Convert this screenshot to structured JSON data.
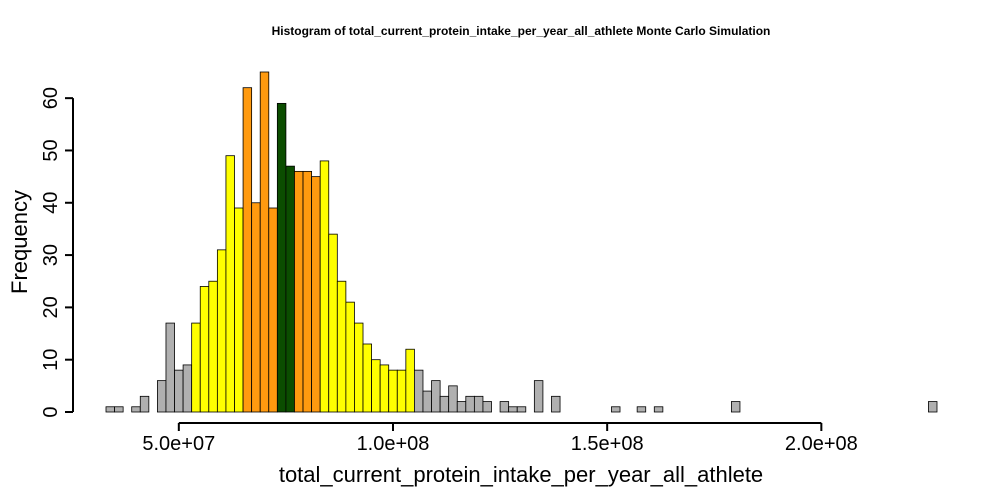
{
  "chart_data": {
    "type": "bar",
    "title": "Histogram of  total_current_protein_intake_per_year_all_athlete  Monte Carlo Simulation",
    "xlabel": "total_current_protein_intake_per_year_all_athlete",
    "ylabel": "Frequency",
    "bin_start": 33000000,
    "bin_width": 2000000,
    "xlim": [
      33000000,
      227000000
    ],
    "ylim": [
      0,
      65
    ],
    "x_ticks": [
      50000000,
      100000000,
      150000000,
      200000000
    ],
    "x_tick_labels": [
      "5.0e+07",
      "1.0e+08",
      "1.5e+08",
      "2.0e+08"
    ],
    "y_ticks": [
      0,
      10,
      20,
      30,
      40,
      50,
      60
    ],
    "y_tick_labels": [
      "0",
      "10",
      "20",
      "30",
      "40",
      "50",
      "60"
    ],
    "grid": false,
    "legend": "none",
    "colors": {
      "outer": "#b0b0b0",
      "inner": "#ffff00",
      "core": "#ff9a0f",
      "center": "#0b4d00",
      "edge": "#000000"
    },
    "counts": [
      1,
      1,
      0,
      1,
      3,
      0,
      6,
      17,
      8,
      9,
      17,
      24,
      25,
      31,
      49,
      39,
      62,
      40,
      65,
      39,
      59,
      47,
      46,
      46,
      45,
      48,
      34,
      25,
      21,
      17,
      13,
      10,
      9,
      8,
      8,
      12,
      8,
      4,
      6,
      3,
      5,
      2,
      3,
      3,
      2,
      0,
      2,
      1,
      1,
      0,
      6,
      0,
      3,
      0,
      0,
      0,
      0,
      0,
      0,
      1,
      0,
      0,
      1,
      0,
      1,
      0,
      0,
      0,
      0,
      0,
      0,
      0,
      0,
      2,
      0,
      0,
      0,
      0,
      0,
      0,
      0,
      0,
      0,
      0,
      0,
      0,
      0,
      0,
      0,
      0,
      0,
      0,
      0,
      0,
      0,
      0,
      2
    ],
    "bin_colors": [
      "outer",
      "outer",
      "outer",
      "outer",
      "outer",
      "outer",
      "outer",
      "outer",
      "outer",
      "outer",
      "inner",
      "inner",
      "inner",
      "inner",
      "inner",
      "inner",
      "core",
      "core",
      "core",
      "core",
      "center",
      "center",
      "core",
      "core",
      "core",
      "inner",
      "inner",
      "inner",
      "inner",
      "inner",
      "inner",
      "inner",
      "inner",
      "inner",
      "inner",
      "inner",
      "outer",
      "outer",
      "outer",
      "outer",
      "outer",
      "outer",
      "outer",
      "outer",
      "outer",
      "outer",
      "outer",
      "outer",
      "outer",
      "outer",
      "outer",
      "outer",
      "outer",
      "outer",
      "outer",
      "outer",
      "outer",
      "outer",
      "outer",
      "outer",
      "outer",
      "outer",
      "outer",
      "outer",
      "outer",
      "outer",
      "outer",
      "outer",
      "outer",
      "outer",
      "outer",
      "outer",
      "outer",
      "outer",
      "outer",
      "outer",
      "outer",
      "outer",
      "outer",
      "outer",
      "outer",
      "outer",
      "outer",
      "outer",
      "outer",
      "outer",
      "outer",
      "outer",
      "outer",
      "outer",
      "outer",
      "outer",
      "outer",
      "outer",
      "outer",
      "outer",
      "outer"
    ]
  }
}
